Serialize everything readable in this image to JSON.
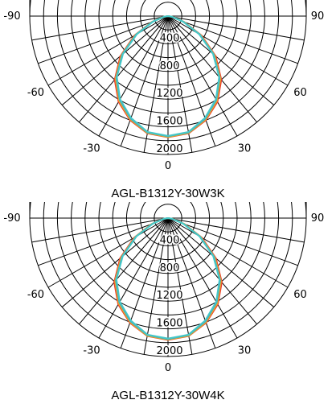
{
  "chart_data": [
    {
      "type": "polar",
      "title": "AGL-B1312Y-30W3K",
      "angle_ticks": [
        "-90",
        "-60",
        "-30",
        "0",
        "30",
        "60",
        "90"
      ],
      "radial_ticks": [
        "400",
        "800",
        "1200",
        "1600",
        "2000"
      ],
      "rlim": [
        0,
        2000
      ],
      "grid": true,
      "angles_deg": [
        0,
        10,
        20,
        30,
        40,
        50,
        60,
        70,
        80,
        90
      ],
      "series": [
        {
          "color": "#e8392e",
          "values": [
            1750,
            1720,
            1600,
            1430,
            1200,
            900,
            560,
            250,
            70,
            0
          ]
        },
        {
          "color": "#f5a623",
          "values": [
            1745,
            1715,
            1590,
            1415,
            1180,
            880,
            545,
            245,
            68,
            0
          ]
        },
        {
          "color": "#9ccc45",
          "values": [
            1740,
            1710,
            1580,
            1400,
            1165,
            865,
            535,
            240,
            65,
            0
          ]
        },
        {
          "color": "#3c9bd6",
          "values": [
            1735,
            1705,
            1575,
            1395,
            1160,
            860,
            530,
            235,
            64,
            0
          ]
        },
        {
          "color": "#46c8c8",
          "values": [
            1730,
            1700,
            1565,
            1385,
            1150,
            850,
            520,
            230,
            62,
            0
          ]
        }
      ]
    },
    {
      "type": "polar",
      "title": "AGL-B1312Y-30W4K",
      "angle_ticks": [
        "-90",
        "-60",
        "-30",
        "0",
        "30",
        "60",
        "90"
      ],
      "radial_ticks": [
        "400",
        "800",
        "1200",
        "1600",
        "2000"
      ],
      "rlim": [
        0,
        2000
      ],
      "grid": true,
      "angles_deg": [
        0,
        10,
        20,
        30,
        40,
        50,
        60,
        70,
        80,
        90
      ],
      "series": [
        {
          "color": "#e8392e",
          "values": [
            1760,
            1730,
            1610,
            1440,
            1210,
            905,
            565,
            255,
            72,
            0
          ]
        },
        {
          "color": "#f5a623",
          "values": [
            1755,
            1725,
            1600,
            1425,
            1190,
            885,
            550,
            248,
            69,
            0
          ]
        },
        {
          "color": "#9ccc45",
          "values": [
            1750,
            1720,
            1590,
            1410,
            1175,
            870,
            540,
            242,
            66,
            0
          ]
        },
        {
          "color": "#3c9bd6",
          "values": [
            1745,
            1715,
            1585,
            1405,
            1170,
            865,
            535,
            238,
            65,
            0
          ]
        },
        {
          "color": "#46c8c8",
          "values": [
            1740,
            1710,
            1575,
            1395,
            1160,
            855,
            525,
            232,
            63,
            0
          ]
        }
      ]
    }
  ]
}
